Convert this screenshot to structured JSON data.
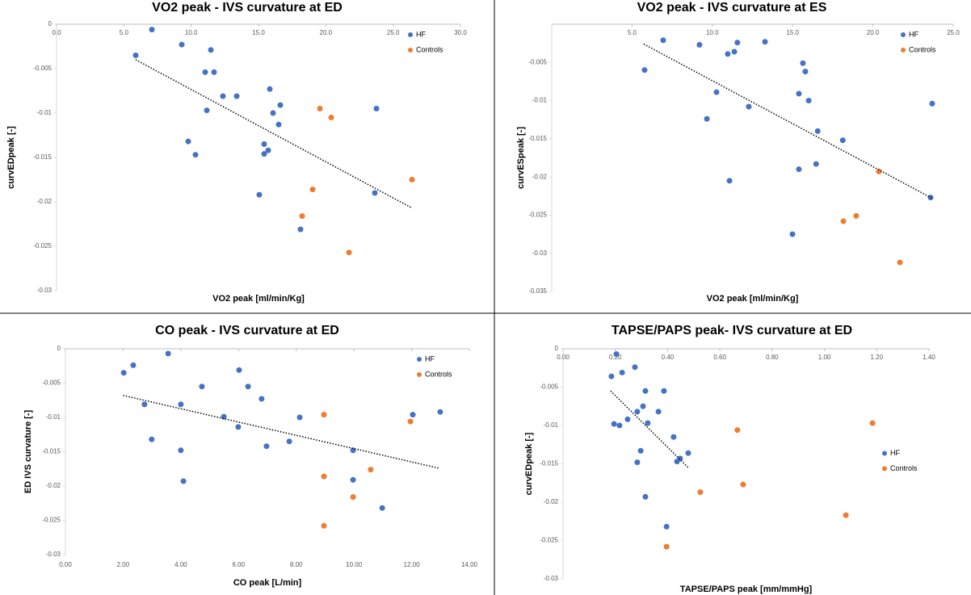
{
  "chart_data": [
    {
      "type": "scatter",
      "title": "VO2 peak - IVS curvature at ED",
      "x_label": "VO2 peak [ml/min/Kg]",
      "y_label": "curvEDpeak [-]",
      "xlim": [
        0,
        30
      ],
      "ylim": [
        -0.03,
        0
      ],
      "xtick_position": "top",
      "legend": "upper right",
      "xticks": [
        {
          "value": 0,
          "label": "0.0"
        },
        {
          "value": 5,
          "label": "5.0"
        },
        {
          "value": 10,
          "label": "10.0"
        },
        {
          "value": 15,
          "label": "15.0"
        },
        {
          "value": 20,
          "label": "20.0"
        },
        {
          "value": 25,
          "label": "25.0"
        },
        {
          "value": 30,
          "label": "30.0"
        }
      ],
      "yticks": [
        0,
        -0.005,
        -0.01,
        -0.015,
        -0.02,
        -0.025,
        -0.03
      ],
      "series": [
        {
          "name": "HF",
          "color": "#4472c4",
          "x": [
            7.08,
            5.88,
            9.3,
            11.46,
            11.04,
            11.7,
            12.36,
            13.38,
            11.16,
            15.84,
            16.62,
            16.08,
            16.5,
            9.78,
            10.32,
            15.42,
            15.72,
            15.42,
            15.06,
            18.12,
            23.76,
            23.64
          ],
          "values": [
            -0.0006,
            -0.0035,
            -0.0023,
            -0.0029,
            -0.0054,
            -0.0054,
            -0.0081,
            -0.0081,
            -0.0097,
            -0.0073,
            -0.0091,
            -0.01,
            -0.0113,
            -0.0132,
            -0.0147,
            -0.0135,
            -0.0142,
            -0.0146,
            -0.0192,
            -0.0231,
            -0.0095,
            -0.019
          ]
        },
        {
          "name": "Controls",
          "color": "#ed7d31",
          "x": [
            19.56,
            20.4,
            26.4,
            19.02,
            18.24,
            21.72
          ],
          "values": [
            -0.0095,
            -0.0105,
            -0.0175,
            -0.0186,
            -0.0216,
            -0.0257
          ]
        }
      ],
      "trendline": {
        "x": [
          5.88,
          26.4
        ],
        "y": [
          -0.004,
          -0.0207
        ]
      }
    },
    {
      "type": "scatter",
      "title": "VO2 peak - IVS curvature at ES",
      "x_label": "VO2 peak [ml/min/Kg]",
      "y_label": "curvESpeak [-]",
      "xlim": [
        0,
        25
      ],
      "ylim": [
        -0.035,
        0
      ],
      "xtick_position": "top",
      "legend": "upper right",
      "xticks": [
        {
          "value": 5,
          "label": "5.0"
        },
        {
          "value": 10,
          "label": "10.0"
        },
        {
          "value": 15,
          "label": "15.0"
        },
        {
          "value": 20,
          "label": "20.0"
        },
        {
          "value": 25,
          "label": "25.0"
        }
      ],
      "yticks": [
        -0.005,
        -0.01,
        -0.015,
        -0.02,
        -0.025,
        -0.03,
        -0.035
      ],
      "series": [
        {
          "name": "HF",
          "color": "#4472c4",
          "x": [
            6.94,
            9.2,
            11.56,
            13.28,
            10.96,
            11.37,
            5.78,
            15.64,
            15.79,
            16.0,
            15.39,
            10.26,
            12.27,
            9.66,
            16.56,
            18.12,
            16.46,
            15.39,
            11.07,
            14.99,
            23.69,
            23.59
          ],
          "values": [
            -0.0021,
            -0.0027,
            -0.0024,
            -0.0023,
            -0.0039,
            -0.0036,
            -0.006,
            -0.0051,
            -0.0062,
            -0.01,
            -0.0091,
            -0.0089,
            -0.0108,
            -0.0124,
            -0.014,
            -0.0152,
            -0.0183,
            -0.019,
            -0.0205,
            -0.0275,
            -0.0104,
            -0.0227
          ]
        },
        {
          "name": "Controls",
          "color": "#ed7d31",
          "x": [
            20.37,
            18.16,
            18.96,
            21.68
          ],
          "values": [
            -0.0193,
            -0.0258,
            -0.0251,
            -0.0312
          ]
        }
      ],
      "trendline": {
        "x": [
          5.73,
          23.69
        ],
        "y": [
          -0.0026,
          -0.0228
        ]
      }
    },
    {
      "type": "scatter",
      "title": "CO peak - IVS curvature at ED",
      "x_label": "CO peak [L/min]",
      "y_label": "ED IVS curvature [-]",
      "xlim": [
        0,
        14
      ],
      "ylim": [
        -0.03,
        0
      ],
      "xtick_position": "bottom",
      "legend": "upper right",
      "xticks": [
        {
          "value": 0,
          "label": "0.00"
        },
        {
          "value": 2,
          "label": "2.00"
        },
        {
          "value": 4,
          "label": "4.00"
        },
        {
          "value": 6,
          "label": "6.00"
        },
        {
          "value": 8,
          "label": "8.00"
        },
        {
          "value": 10,
          "label": "10.00"
        },
        {
          "value": 12,
          "label": "12.00"
        },
        {
          "value": 14,
          "label": "14.00"
        }
      ],
      "yticks": [
        0,
        -0.005,
        -0.01,
        -0.015,
        -0.02,
        -0.025,
        -0.03
      ],
      "series": [
        {
          "name": "HF",
          "color": "#4472c4",
          "x": [
            2.02,
            2.35,
            3.56,
            2.74,
            2.99,
            4.0,
            4.0,
            4.09,
            4.73,
            5.49,
            6.02,
            5.99,
            6.33,
            6.8,
            6.97,
            7.76,
            8.12,
            9.97,
            9.97,
            10.98,
            12.04,
            12.99
          ],
          "values": [
            -0.0035,
            -0.0024,
            -0.0007,
            -0.0081,
            -0.0132,
            -0.0081,
            -0.0148,
            -0.0193,
            -0.0055,
            -0.0099,
            -0.0031,
            -0.0114,
            -0.0055,
            -0.0073,
            -0.0142,
            -0.0135,
            -0.01,
            -0.0148,
            -0.0191,
            -0.0232,
            -0.0096,
            -0.0092
          ]
        },
        {
          "name": "Controls",
          "color": "#ed7d31",
          "x": [
            8.96,
            11.96,
            10.58,
            8.96,
            9.97,
            8.96
          ],
          "values": [
            -0.0096,
            -0.0106,
            -0.0176,
            -0.0186,
            -0.0216,
            -0.0258
          ]
        }
      ],
      "trendline": {
        "x": [
          2,
          12.94
        ],
        "y": [
          -0.0068,
          -0.0174
        ]
      }
    },
    {
      "type": "scatter",
      "title": "TAPSE/PAPS peak- IVS curvature at ED",
      "x_label": "TAPSE/PAPS peak [mm/mmHg]",
      "y_label": "curvEDpeak [-]",
      "xlim": [
        0,
        1.4
      ],
      "ylim": [
        -0.03,
        0
      ],
      "xtick_position": "top",
      "legend": "center right",
      "xticks": [
        {
          "value": 0,
          "label": "0.00"
        },
        {
          "value": 0.2,
          "label": "0.20"
        },
        {
          "value": 0.4,
          "label": "0.40"
        },
        {
          "value": 0.6,
          "label": "0.60"
        },
        {
          "value": 0.8,
          "label": "0.80"
        },
        {
          "value": 1,
          "label": "1.00"
        },
        {
          "value": 1.2,
          "label": "1.20"
        },
        {
          "value": 1.4,
          "label": "1.40"
        }
      ],
      "yticks": [
        0,
        -0.005,
        -0.01,
        -0.015,
        -0.02,
        -0.025,
        -0.03
      ],
      "series": [
        {
          "name": "HF",
          "color": "#4472c4",
          "x": [
            0.204,
            0.185,
            0.226,
            0.275,
            0.315,
            0.386,
            0.306,
            0.284,
            0.365,
            0.247,
            0.195,
            0.216,
            0.324,
            0.297,
            0.284,
            0.423,
            0.479,
            0.448,
            0.436,
            0.315,
            0.396
          ],
          "values": [
            -0.0007,
            -0.0036,
            -0.0031,
            -0.0024,
            -0.0055,
            -0.0055,
            -0.0075,
            -0.0082,
            -0.0082,
            -0.0092,
            -0.0098,
            -0.01,
            -0.0097,
            -0.0133,
            -0.0148,
            -0.0115,
            -0.0136,
            -0.0143,
            -0.0147,
            -0.0193,
            -0.0232
          ]
        },
        {
          "name": "Controls",
          "color": "#ed7d31",
          "x": [
            0.667,
            1.184,
            0.689,
            0.525,
            1.082,
            0.396
          ],
          "values": [
            -0.0106,
            -0.0097,
            -0.0177,
            -0.0187,
            -0.0217,
            -0.0258
          ]
        }
      ],
      "trendline": {
        "x": [
          0.182,
          0.479
        ],
        "y": [
          -0.0055,
          -0.0155
        ]
      }
    }
  ]
}
